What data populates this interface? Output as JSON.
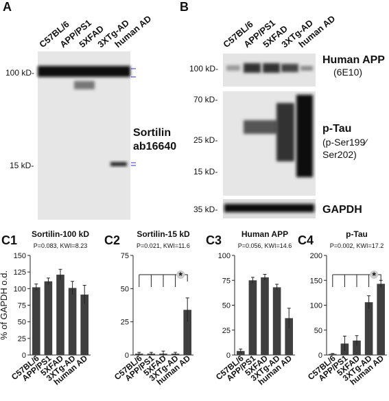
{
  "panel_a": {
    "label": "A",
    "lanes": [
      "C57BL/6",
      "APP/PS1",
      "5XFAD",
      "3XTg-AD",
      "human AD"
    ],
    "markers": [
      "100 kD-",
      "15 kD-"
    ],
    "antibody": [
      "Sortilin",
      "ab16640"
    ]
  },
  "panel_b": {
    "label": "B",
    "lanes": [
      "C57BL/6",
      "APP/PS1",
      "5XFAD",
      "3XTg-AD",
      "human AD"
    ],
    "markers": [
      "100 kD-",
      "70 kD-",
      "25 kD-",
      "15 kD-",
      "35 kD-"
    ],
    "antibodies": [
      "Human APP",
      "(6E10)",
      "p-Tau",
      "(p-Ser199⁄",
      "Ser202)",
      "GAPDH"
    ]
  },
  "chart_data": [
    {
      "type": "bar",
      "panel_label": "C1",
      "title": "Sortilin-100 kD",
      "subtitle": "P=0.083, KWI=8.23",
      "y_label": "% of GAPDH o.d.",
      "categories": [
        "C57BL/6",
        "APP/PS1",
        "5XFAD",
        "3XTg-AD",
        "human AD"
      ],
      "values": [
        102,
        111,
        121,
        101,
        91
      ],
      "errors": [
        5,
        5,
        8,
        10,
        14
      ],
      "color": "#3f3f3f",
      "ylim": [
        0,
        150
      ],
      "yticks": [
        0,
        25,
        50,
        75,
        100,
        125,
        150
      ]
    },
    {
      "type": "bar",
      "panel_label": "C2",
      "title": "Sortilin-15 kD",
      "subtitle": "P=0.021, KWI=11.6",
      "categories": [
        "C57BL/6",
        "APP/PS1",
        "5XFAD",
        "3XTg-AD",
        "human AD"
      ],
      "values": [
        1,
        1,
        1,
        1,
        34
      ],
      "errors": [
        1,
        1,
        2,
        1,
        9
      ],
      "color": "#3f3f3f",
      "ylim": [
        0,
        75
      ],
      "yticks": [
        0,
        25,
        50,
        75
      ],
      "significance": "*"
    },
    {
      "type": "bar",
      "panel_label": "C3",
      "title": "Human APP",
      "subtitle": "P=0.056, KWI=14.6",
      "categories": [
        "C57BL/6",
        "APP/PS1",
        "5XFAD",
        "3XTg-AD",
        "human AD"
      ],
      "values": [
        4,
        75,
        78,
        68,
        37
      ],
      "errors": [
        2,
        3,
        3,
        3,
        10
      ],
      "color": "#3f3f3f",
      "ylim": [
        0,
        100
      ],
      "yticks": [
        0,
        25,
        50,
        75,
        100
      ]
    },
    {
      "type": "bar",
      "panel_label": "C4",
      "title": "p-Tau",
      "subtitle": "P=0.002, KWI=17.2",
      "categories": [
        "C57BL/6",
        "APP/PS1",
        "5XFAD",
        "3XTg-AD",
        "human AD"
      ],
      "values": [
        2,
        23,
        29,
        106,
        143
      ],
      "errors": [
        1,
        15,
        10,
        13,
        7
      ],
      "color": "#3f3f3f",
      "ylim": [
        0,
        200
      ],
      "yticks": [
        0,
        50,
        100,
        150,
        200
      ],
      "significance": "*"
    }
  ]
}
